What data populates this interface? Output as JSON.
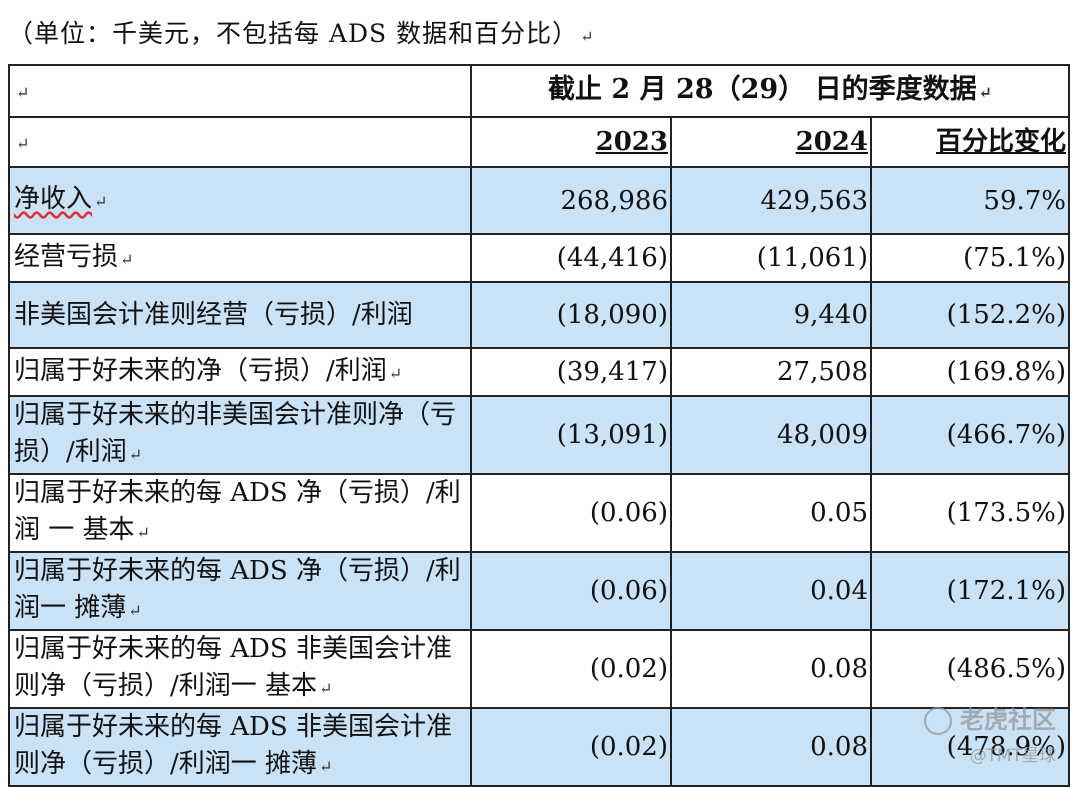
{
  "unit_note": "（单位：千美元，不包括每 ADS 数据和百分比）",
  "return_mark": "↵",
  "header": {
    "period": "截止 2 月 28（29） 日的季度数据",
    "col_2023": "2023",
    "col_2024": "2024",
    "col_change": "百分比变化"
  },
  "rows": [
    {
      "label": "净收入",
      "v2023": "268,986",
      "v2024": "429,563",
      "change": "59.7%"
    },
    {
      "label": "经营亏损",
      "v2023": "(44,416)",
      "v2024": "(11,061)",
      "change": "(75.1%)"
    },
    {
      "label": "非美国会计准则经营（亏损）/利润",
      "v2023": "(18,090)",
      "v2024": "9,440",
      "change": "(152.2%)"
    },
    {
      "label": "归属于好未来的净（亏损）/利润",
      "v2023": "(39,417)",
      "v2024": "27,508",
      "change": "(169.8%)"
    },
    {
      "label": "归属于好未来的非美国会计准则净（亏损）/利润",
      "v2023": "(13,091)",
      "v2024": "48,009",
      "change": "(466.7%)"
    },
    {
      "label": "归属于好未来的每 ADS 净（亏损）/利润 一 基本",
      "v2023": "(0.06)",
      "v2024": "0.05",
      "change": "(173.5%)"
    },
    {
      "label": "归属于好未来的每 ADS 净（亏损）/利润一 摊薄",
      "v2023": "(0.06)",
      "v2024": "0.04",
      "change": "(172.1%)"
    },
    {
      "label": "归属于好未来的每 ADS 非美国会计准则净（亏损）/利润一 基本",
      "v2023": "(0.02)",
      "v2024": "0.08",
      "change": "(486.5%)"
    },
    {
      "label": "归属于好未来的每 ADS 非美国会计准则净（亏损）/利润一 摊薄",
      "v2023": "(0.02)",
      "v2024": "0.08",
      "change": "(478.9%)"
    }
  ],
  "watermark": {
    "line1": "老虎社区",
    "line2": "@TMT星球"
  }
}
